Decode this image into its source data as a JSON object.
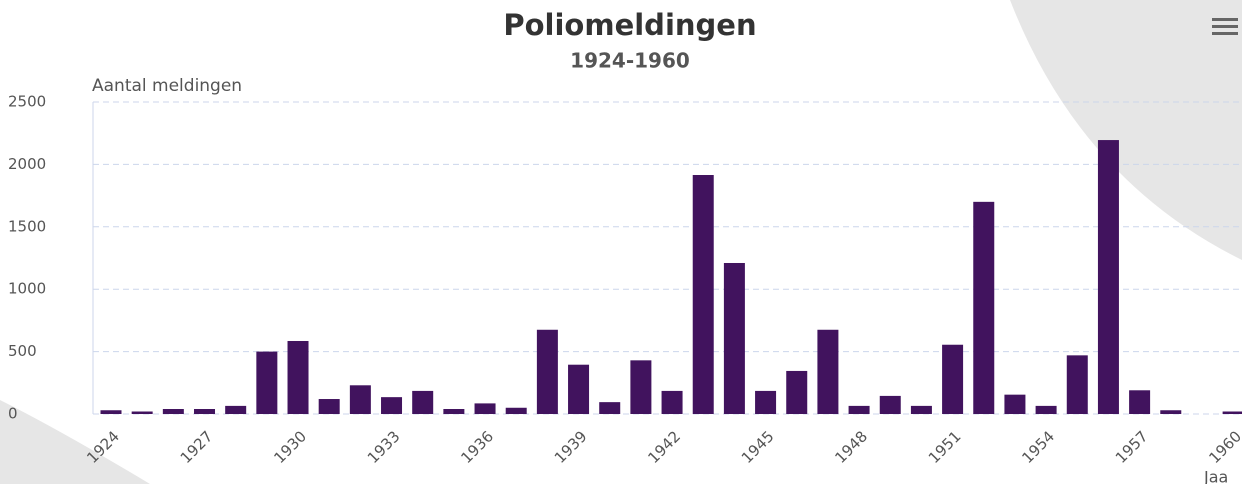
{
  "chart_data": {
    "type": "bar",
    "title": "Poliomeldingen",
    "subtitle": "1924-1960",
    "y_axis_label": "Aantal meldingen",
    "x_axis_label": "Jaa",
    "categories": [
      "1924",
      null,
      null,
      "1927",
      null,
      null,
      "1930",
      null,
      null,
      "1933",
      null,
      null,
      "1936",
      null,
      null,
      "1939",
      null,
      null,
      "1942",
      null,
      null,
      "1945",
      null,
      null,
      "1948",
      null,
      null,
      "1951",
      null,
      null,
      "1954",
      null,
      null,
      "1957",
      null,
      null,
      "1960"
    ],
    "values": [
      30,
      20,
      40,
      40,
      65,
      500,
      585,
      120,
      230,
      135,
      185,
      40,
      85,
      50,
      675,
      395,
      95,
      430,
      185,
      1915,
      1210,
      185,
      345,
      675,
      65,
      145,
      65,
      555,
      1700,
      155,
      65,
      470,
      2195,
      190,
      30,
      0,
      20
    ],
    "color": "#41135e",
    "ylim": [
      0,
      2500
    ],
    "yticks": [
      0,
      500,
      1000,
      1500,
      2000,
      2500
    ],
    "grid": true
  }
}
